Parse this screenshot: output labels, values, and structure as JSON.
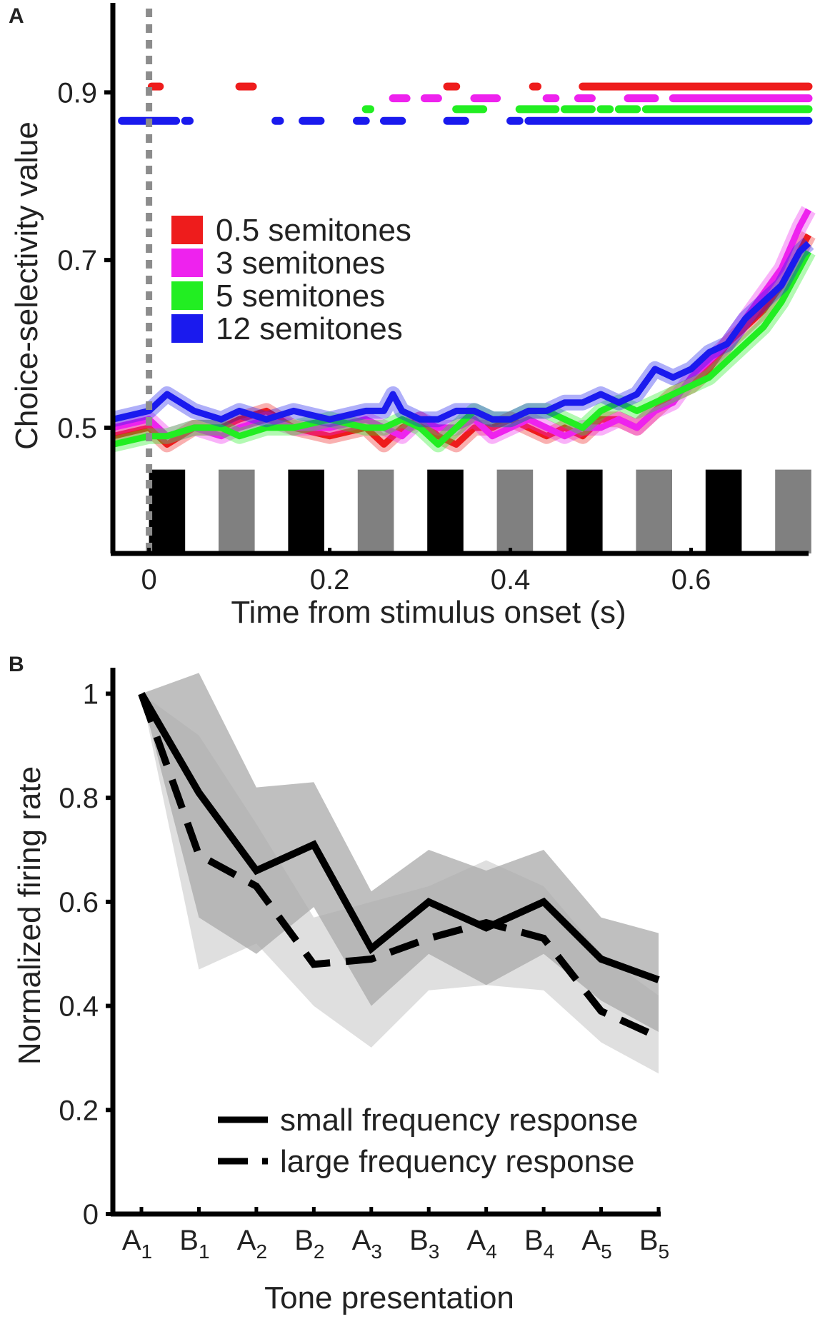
{
  "chart_data": [
    {
      "panel": "A",
      "type": "line",
      "xlabel": "Time from stimulus onset (s)",
      "ylabel": "Choice-selectivity value",
      "xlim": [
        -0.04,
        0.73
      ],
      "ylim": [
        0.35,
        1.0
      ],
      "xticks": [
        0,
        0.2,
        0.4,
        0.6
      ],
      "xtick_labels": [
        "0",
        "0.2",
        "0.4",
        "0.6"
      ],
      "yticks": [
        0.5,
        0.7,
        0.9
      ],
      "ytick_labels": [
        "0.5",
        "0.7",
        "0.9"
      ],
      "onset_marker_x": 0,
      "onset_marker_color": "#8c8c8c",
      "legend": [
        "0.5 semitones",
        "3 semitones",
        "5 semitones",
        "12 semitones"
      ],
      "series": [
        {
          "name": "0.5 semitones",
          "color": "#ee1c1c",
          "x": [
            -0.04,
            0.0,
            0.02,
            0.05,
            0.08,
            0.1,
            0.13,
            0.16,
            0.2,
            0.24,
            0.26,
            0.28,
            0.3,
            0.32,
            0.34,
            0.36,
            0.38,
            0.4,
            0.42,
            0.44,
            0.46,
            0.48,
            0.5,
            0.52,
            0.54,
            0.56,
            0.58,
            0.6,
            0.62,
            0.64,
            0.66,
            0.68,
            0.7,
            0.72,
            0.73
          ],
          "y": [
            0.49,
            0.5,
            0.48,
            0.5,
            0.5,
            0.51,
            0.52,
            0.5,
            0.49,
            0.5,
            0.48,
            0.5,
            0.51,
            0.49,
            0.48,
            0.5,
            0.5,
            0.51,
            0.5,
            0.49,
            0.5,
            0.49,
            0.51,
            0.51,
            0.5,
            0.52,
            0.54,
            0.55,
            0.57,
            0.6,
            0.62,
            0.64,
            0.67,
            0.71,
            0.73
          ]
        },
        {
          "name": "3 semitones",
          "color": "#ee22ee",
          "x": [
            -0.04,
            0.0,
            0.02,
            0.05,
            0.08,
            0.1,
            0.13,
            0.16,
            0.2,
            0.24,
            0.26,
            0.28,
            0.3,
            0.32,
            0.34,
            0.36,
            0.38,
            0.4,
            0.42,
            0.44,
            0.46,
            0.48,
            0.5,
            0.52,
            0.54,
            0.56,
            0.58,
            0.6,
            0.62,
            0.64,
            0.66,
            0.68,
            0.7,
            0.72,
            0.73
          ],
          "y": [
            0.5,
            0.51,
            0.49,
            0.5,
            0.49,
            0.5,
            0.51,
            0.5,
            0.5,
            0.51,
            0.5,
            0.49,
            0.51,
            0.5,
            0.5,
            0.51,
            0.49,
            0.5,
            0.51,
            0.5,
            0.49,
            0.5,
            0.5,
            0.51,
            0.5,
            0.52,
            0.53,
            0.56,
            0.58,
            0.6,
            0.63,
            0.66,
            0.69,
            0.74,
            0.76
          ]
        },
        {
          "name": "5 semitones",
          "color": "#22ee22",
          "x": [
            -0.04,
            0.0,
            0.02,
            0.05,
            0.08,
            0.1,
            0.13,
            0.16,
            0.2,
            0.24,
            0.26,
            0.28,
            0.3,
            0.32,
            0.34,
            0.36,
            0.38,
            0.4,
            0.42,
            0.44,
            0.46,
            0.48,
            0.5,
            0.52,
            0.54,
            0.56,
            0.58,
            0.6,
            0.62,
            0.64,
            0.66,
            0.68,
            0.7,
            0.72,
            0.73
          ],
          "y": [
            0.48,
            0.49,
            0.49,
            0.5,
            0.5,
            0.49,
            0.5,
            0.5,
            0.51,
            0.5,
            0.5,
            0.51,
            0.5,
            0.48,
            0.5,
            0.52,
            0.51,
            0.51,
            0.52,
            0.52,
            0.51,
            0.5,
            0.52,
            0.53,
            0.52,
            0.53,
            0.54,
            0.55,
            0.56,
            0.58,
            0.6,
            0.62,
            0.65,
            0.69,
            0.71
          ]
        },
        {
          "name": "12 semitones",
          "color": "#1a1aee",
          "x": [
            -0.04,
            0.0,
            0.01,
            0.02,
            0.05,
            0.08,
            0.1,
            0.13,
            0.16,
            0.2,
            0.24,
            0.26,
            0.27,
            0.28,
            0.3,
            0.32,
            0.34,
            0.36,
            0.38,
            0.4,
            0.42,
            0.44,
            0.46,
            0.48,
            0.5,
            0.52,
            0.54,
            0.56,
            0.58,
            0.6,
            0.62,
            0.64,
            0.66,
            0.68,
            0.7,
            0.72,
            0.73
          ],
          "y": [
            0.51,
            0.52,
            0.53,
            0.54,
            0.52,
            0.51,
            0.52,
            0.51,
            0.52,
            0.51,
            0.52,
            0.52,
            0.54,
            0.52,
            0.51,
            0.51,
            0.52,
            0.52,
            0.51,
            0.51,
            0.52,
            0.52,
            0.53,
            0.53,
            0.54,
            0.53,
            0.54,
            0.57,
            0.56,
            0.57,
            0.59,
            0.6,
            0.63,
            0.65,
            0.67,
            0.71,
            0.72
          ]
        }
      ],
      "significance_rows": [
        {
          "name": "0.5 semitones",
          "color": "#ee1c1c",
          "y": 0.907,
          "intervals": [
            [
              0.003,
              0.012
            ],
            [
              0.1,
              0.115
            ],
            [
              0.33,
              0.34
            ],
            [
              0.425,
              0.43
            ],
            [
              0.48,
              0.73
            ]
          ]
        },
        {
          "name": "3 semitones",
          "color": "#ee22ee",
          "y": 0.893,
          "intervals": [
            [
              0.27,
              0.285
            ],
            [
              0.305,
              0.32
            ],
            [
              0.36,
              0.385
            ],
            [
              0.44,
              0.45
            ],
            [
              0.475,
              0.49
            ],
            [
              0.53,
              0.56
            ],
            [
              0.58,
              0.73
            ]
          ]
        },
        {
          "name": "5 semitones",
          "color": "#22ee22",
          "y": 0.88,
          "intervals": [
            [
              0.24,
              0.245
            ],
            [
              0.34,
              0.37
            ],
            [
              0.41,
              0.45
            ],
            [
              0.46,
              0.49
            ],
            [
              0.5,
              0.51
            ],
            [
              0.52,
              0.54
            ],
            [
              0.55,
              0.73
            ]
          ]
        },
        {
          "name": "12 semitones",
          "color": "#1a1aee",
          "y": 0.866,
          "intervals": [
            [
              -0.03,
              0.03
            ],
            [
              0.04,
              0.045
            ],
            [
              0.14,
              0.145
            ],
            [
              0.17,
              0.19
            ],
            [
              0.23,
              0.24
            ],
            [
              0.26,
              0.28
            ],
            [
              0.33,
              0.35
            ],
            [
              0.4,
              0.41
            ],
            [
              0.42,
              0.73
            ]
          ]
        }
      ],
      "stimulus_bars": [
        {
          "start": 0.0,
          "end": 0.04,
          "color": "#000000"
        },
        {
          "start": 0.077,
          "end": 0.117,
          "color": "#808080"
        },
        {
          "start": 0.154,
          "end": 0.194,
          "color": "#000000"
        },
        {
          "start": 0.231,
          "end": 0.271,
          "color": "#808080"
        },
        {
          "start": 0.308,
          "end": 0.348,
          "color": "#000000"
        },
        {
          "start": 0.385,
          "end": 0.425,
          "color": "#808080"
        },
        {
          "start": 0.462,
          "end": 0.502,
          "color": "#000000"
        },
        {
          "start": 0.539,
          "end": 0.579,
          "color": "#808080"
        },
        {
          "start": 0.616,
          "end": 0.656,
          "color": "#000000"
        },
        {
          "start": 0.693,
          "end": 0.733,
          "color": "#808080"
        }
      ],
      "stimulus_bar_top": 0.45
    },
    {
      "panel": "B",
      "type": "line",
      "xlabel": "Tone presentation",
      "ylabel": "Normalized firing rate",
      "ylim": [
        0,
        1.05
      ],
      "yticks": [
        0,
        0.2,
        0.4,
        0.6,
        0.8,
        1
      ],
      "ytick_labels": [
        "0",
        "0.2",
        "0.4",
        "0.6",
        "0.8",
        "1"
      ],
      "categories": [
        {
          "letter": "A",
          "sub": "1"
        },
        {
          "letter": "B",
          "sub": "1"
        },
        {
          "letter": "A",
          "sub": "2"
        },
        {
          "letter": "B",
          "sub": "2"
        },
        {
          "letter": "A",
          "sub": "3"
        },
        {
          "letter": "B",
          "sub": "3"
        },
        {
          "letter": "A",
          "sub": "4"
        },
        {
          "letter": "B",
          "sub": "4"
        },
        {
          "letter": "A",
          "sub": "5"
        },
        {
          "letter": "B",
          "sub": "5"
        }
      ],
      "series": [
        {
          "name": "small frequency response",
          "style": "solid",
          "color": "#000000",
          "values": [
            1.0,
            0.81,
            0.66,
            0.71,
            0.51,
            0.6,
            0.55,
            0.6,
            0.49,
            0.45
          ],
          "band_upper": [
            1.0,
            1.04,
            0.82,
            0.83,
            0.62,
            0.7,
            0.66,
            0.7,
            0.57,
            0.54
          ],
          "band_lower": [
            1.0,
            0.57,
            0.5,
            0.59,
            0.4,
            0.5,
            0.44,
            0.5,
            0.41,
            0.35
          ],
          "band_color": "#a9a9a9"
        },
        {
          "name": "large frequency response",
          "style": "dashed",
          "color": "#000000",
          "values": [
            1.0,
            0.69,
            0.63,
            0.48,
            0.49,
            0.53,
            0.56,
            0.53,
            0.39,
            0.34
          ],
          "band_upper": [
            1.0,
            0.92,
            0.75,
            0.57,
            0.6,
            0.63,
            0.68,
            0.63,
            0.5,
            0.42
          ],
          "band_lower": [
            1.0,
            0.47,
            0.52,
            0.4,
            0.32,
            0.43,
            0.44,
            0.43,
            0.33,
            0.27
          ],
          "band_color": "#d4d4d4"
        }
      ],
      "legend": [
        "small frequency response",
        "large frequency response"
      ]
    }
  ]
}
